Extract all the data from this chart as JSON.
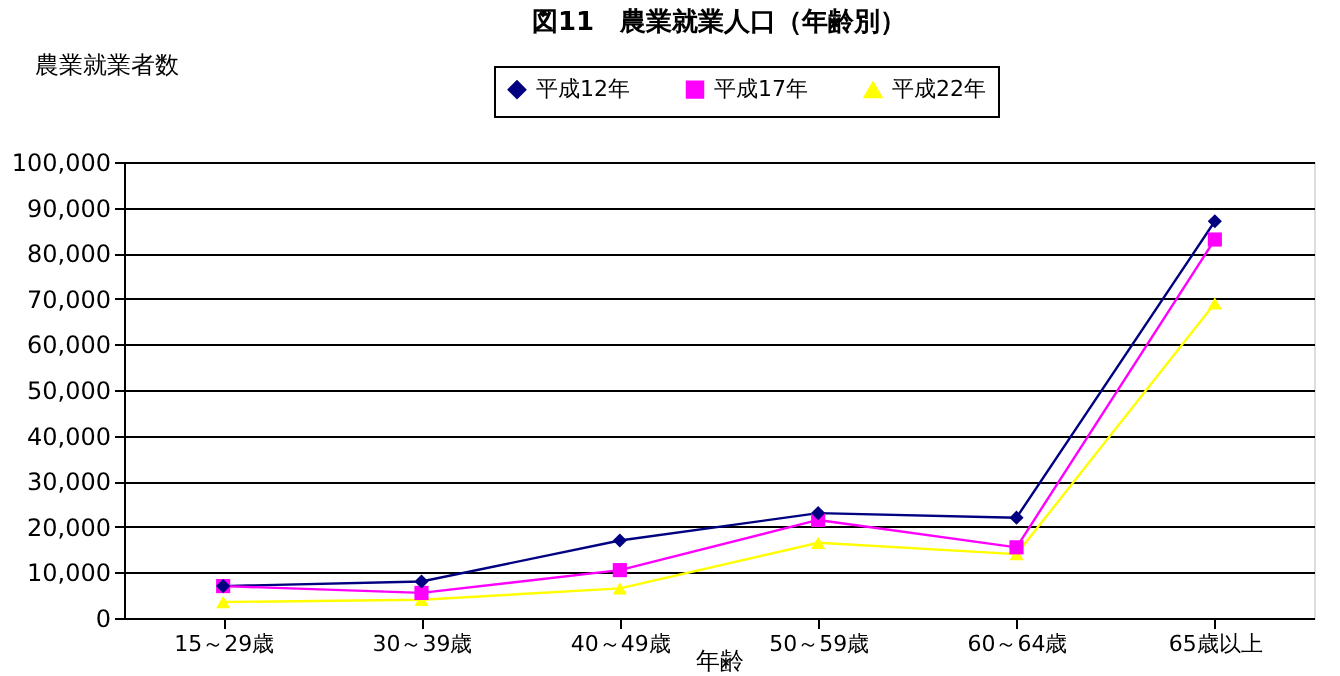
{
  "chart_data": {
    "type": "line",
    "title": "図11　農業就業人口（年齢別）",
    "xlabel": "年齢",
    "ylabel": "農業就業者数",
    "categories": [
      "15～29歳",
      "30～39歳",
      "40～49歳",
      "50～59歳",
      "60～64歳",
      "65歳以上"
    ],
    "series": [
      {
        "name": "平成12年",
        "color": "#000080",
        "marker": "diamond",
        "values": [
          7000,
          8000,
          17000,
          23000,
          22000,
          87000
        ]
      },
      {
        "name": "平成17年",
        "color": "#ff00ff",
        "marker": "square",
        "values": [
          7000,
          5500,
          10500,
          21500,
          15500,
          83000
        ]
      },
      {
        "name": "平成22年",
        "color": "#ffff00",
        "marker": "triangle",
        "values": [
          3500,
          4000,
          6500,
          16500,
          14000,
          69000
        ]
      }
    ],
    "ylim": [
      0,
      100000
    ],
    "yticks": [
      0,
      {
        "value": 10000,
        "label": "10,000"
      },
      {
        "value": 20000,
        "label": "20,000"
      },
      {
        "value": 30000,
        "label": "30,000"
      },
      {
        "value": 40000,
        "label": "40,000"
      },
      {
        "value": 50000,
        "label": "50,000"
      },
      {
        "value": 60000,
        "label": "60,000"
      },
      {
        "value": 70000,
        "label": "70,000"
      },
      {
        "value": 80000,
        "label": "80,000"
      },
      {
        "value": 90000,
        "label": "90,000"
      },
      {
        "value": 100000,
        "label": "100,000"
      }
    ],
    "grid": "y",
    "legend": "top",
    "line_style": "solid"
  }
}
